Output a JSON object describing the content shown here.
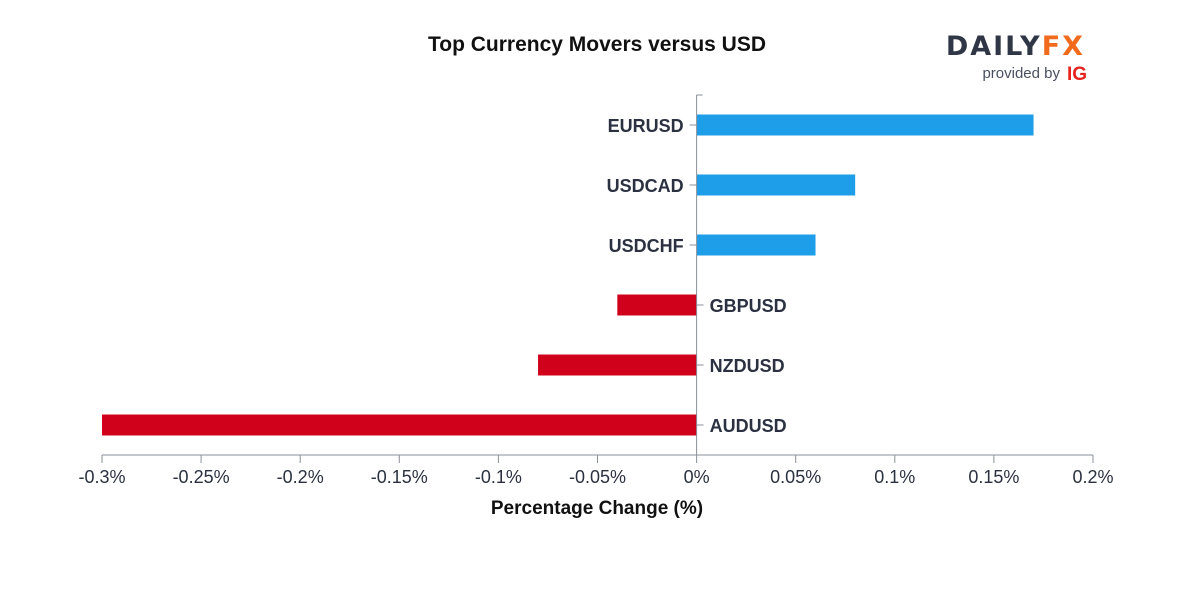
{
  "chart_data": {
    "type": "bar",
    "orientation": "horizontal",
    "title": "Top Currency Movers versus USD",
    "xlabel": "Percentage Change (%)",
    "ylabel": "",
    "categories": [
      "EURUSD",
      "USDCAD",
      "USDCHF",
      "GBPUSD",
      "NZDUSD",
      "AUDUSD"
    ],
    "values": [
      0.17,
      0.08,
      0.06,
      -0.04,
      -0.08,
      -0.3
    ],
    "xlim": [
      -0.3,
      0.2
    ],
    "xticks": [
      -0.3,
      -0.25,
      -0.2,
      -0.15,
      -0.1,
      -0.05,
      0,
      0.05,
      0.1,
      0.15,
      0.2
    ],
    "xtick_labels": [
      "-0.3%",
      "-0.25%",
      "-0.2%",
      "-0.15%",
      "-0.1%",
      "-0.05%",
      "0%",
      "0.05%",
      "0.1%",
      "0.15%",
      "0.2%"
    ],
    "grid": false,
    "colors": {
      "positive": "#1e9de8",
      "negative": "#d0021b",
      "axis": "#8a8f98"
    }
  },
  "logo": {
    "brand_left": "DAILY",
    "brand_right": "FX",
    "provided_by": "provided by",
    "ig": "IG",
    "colors": {
      "left": "#2f3645",
      "right": "#f26b1d",
      "ig": "#e8231e"
    }
  }
}
